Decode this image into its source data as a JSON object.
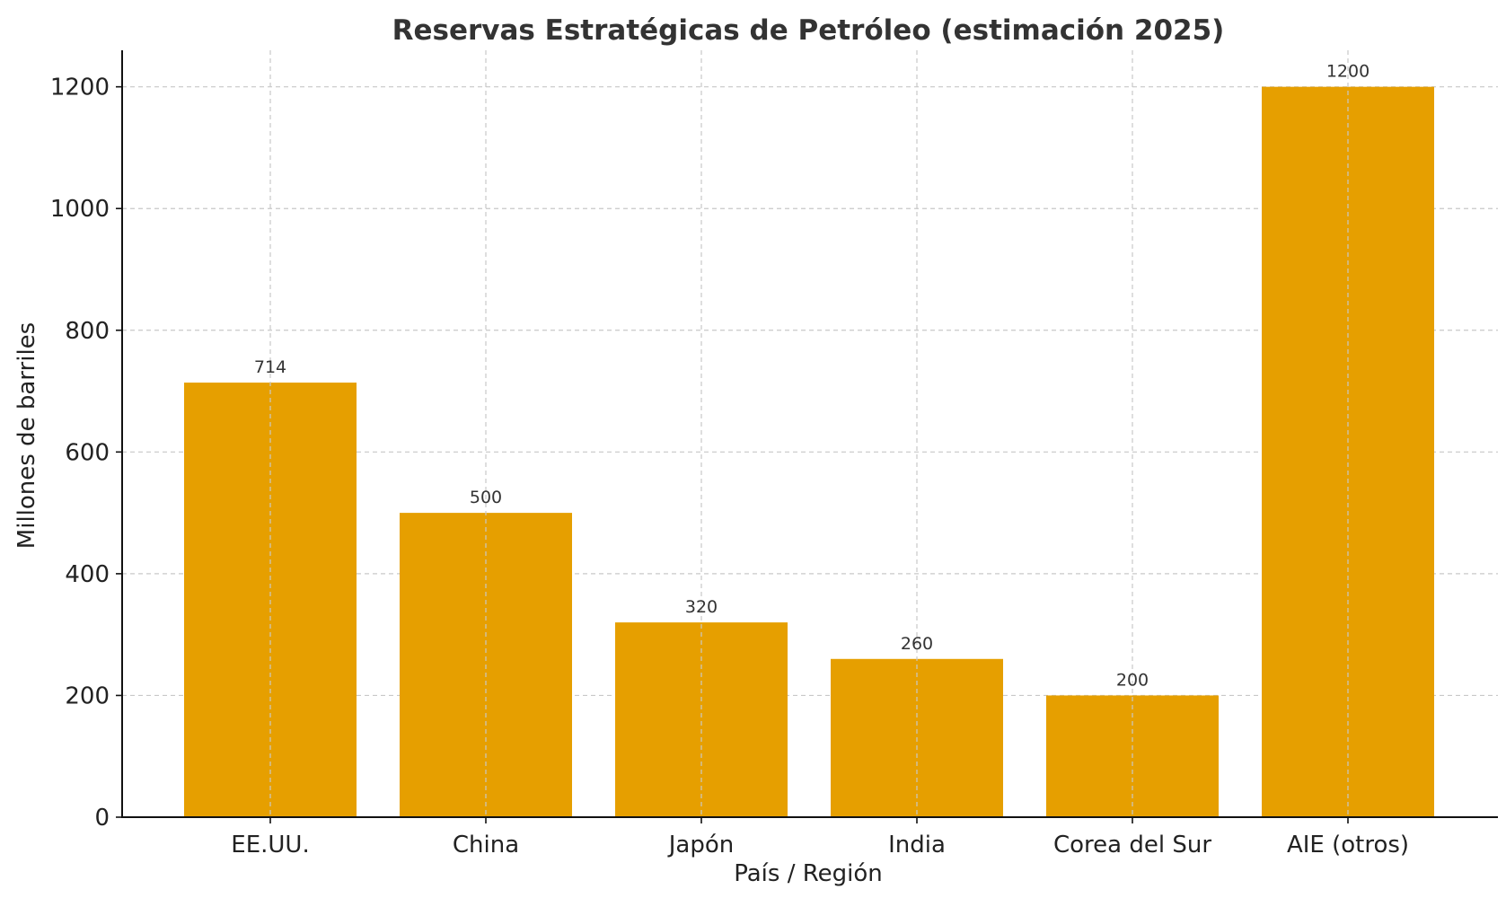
{
  "chart_data": {
    "type": "bar",
    "title": "Reservas Estratégicas de Petróleo (estimación 2025)",
    "xlabel": "País / Región",
    "ylabel": "Millones de barriles",
    "categories": [
      "EE.UU.",
      "China",
      "Japón",
      "India",
      "Corea del Sur",
      "AIE (otros)"
    ],
    "values": [
      714,
      500,
      320,
      260,
      200,
      1200
    ],
    "data_labels": [
      "714",
      "500",
      "320",
      "260",
      "200",
      "1200"
    ],
    "ylim": [
      0,
      1260
    ],
    "yticks": [
      0,
      200,
      400,
      600,
      800,
      1000,
      1200
    ],
    "ytick_labels": [
      "0",
      "200",
      "400",
      "600",
      "800",
      "1000",
      "1200"
    ],
    "grid": true,
    "bar_color": "#E69F00"
  }
}
